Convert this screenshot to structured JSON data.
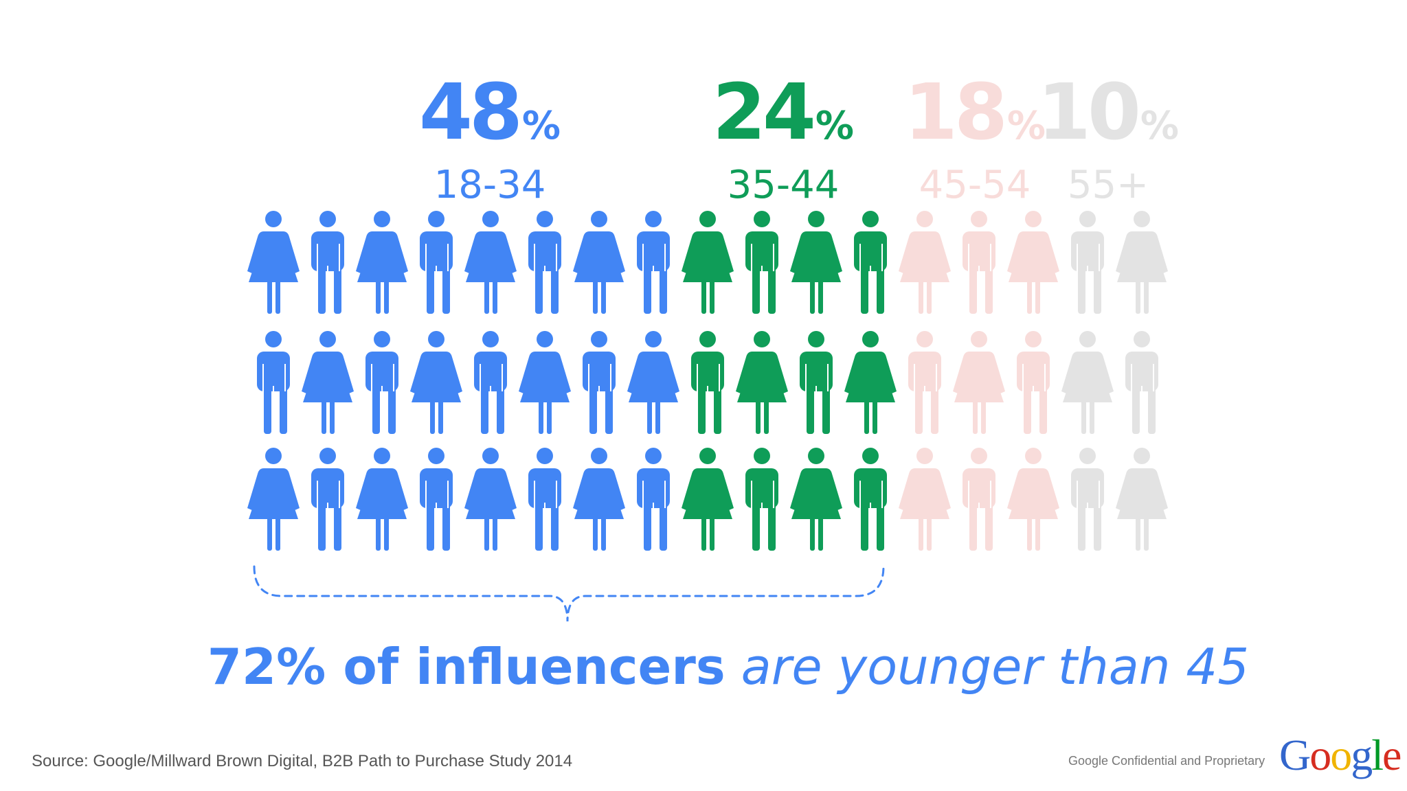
{
  "chart_data": {
    "type": "pictogram",
    "title": "",
    "unit": "%",
    "categories": [
      "18-34",
      "35-44",
      "45-54",
      "55+"
    ],
    "values": [
      48,
      24,
      18,
      10
    ],
    "icons_per_category": [
      8,
      4,
      3,
      2
    ],
    "rows": 3,
    "colors": [
      "#4285f4",
      "#0f9d58",
      "#f8dcda",
      "#e3e3e3"
    ],
    "bracket_covers": [
      "18-34",
      "35-44"
    ]
  },
  "stats": [
    {
      "value": "48",
      "unit": "%",
      "range": "18-34",
      "color": "#4285f4"
    },
    {
      "value": "24",
      "unit": "%",
      "range": "35-44",
      "color": "#0f9d58"
    },
    {
      "value": "18",
      "unit": "%",
      "range": "45-54",
      "color": "#f8dcda"
    },
    {
      "value": "10",
      "unit": "%",
      "range": "55+",
      "color": "#e3e3e3"
    }
  ],
  "headline": {
    "strong": "72% of influencers",
    "soft": "are younger than 45"
  },
  "footer": {
    "source": "Source: Google/Millward Brown Digital, B2B Path to Purchase Study 2014",
    "confidential": "Google Confidential and Proprietary",
    "logo": [
      "G",
      "o",
      "o",
      "g",
      "l",
      "e"
    ]
  }
}
